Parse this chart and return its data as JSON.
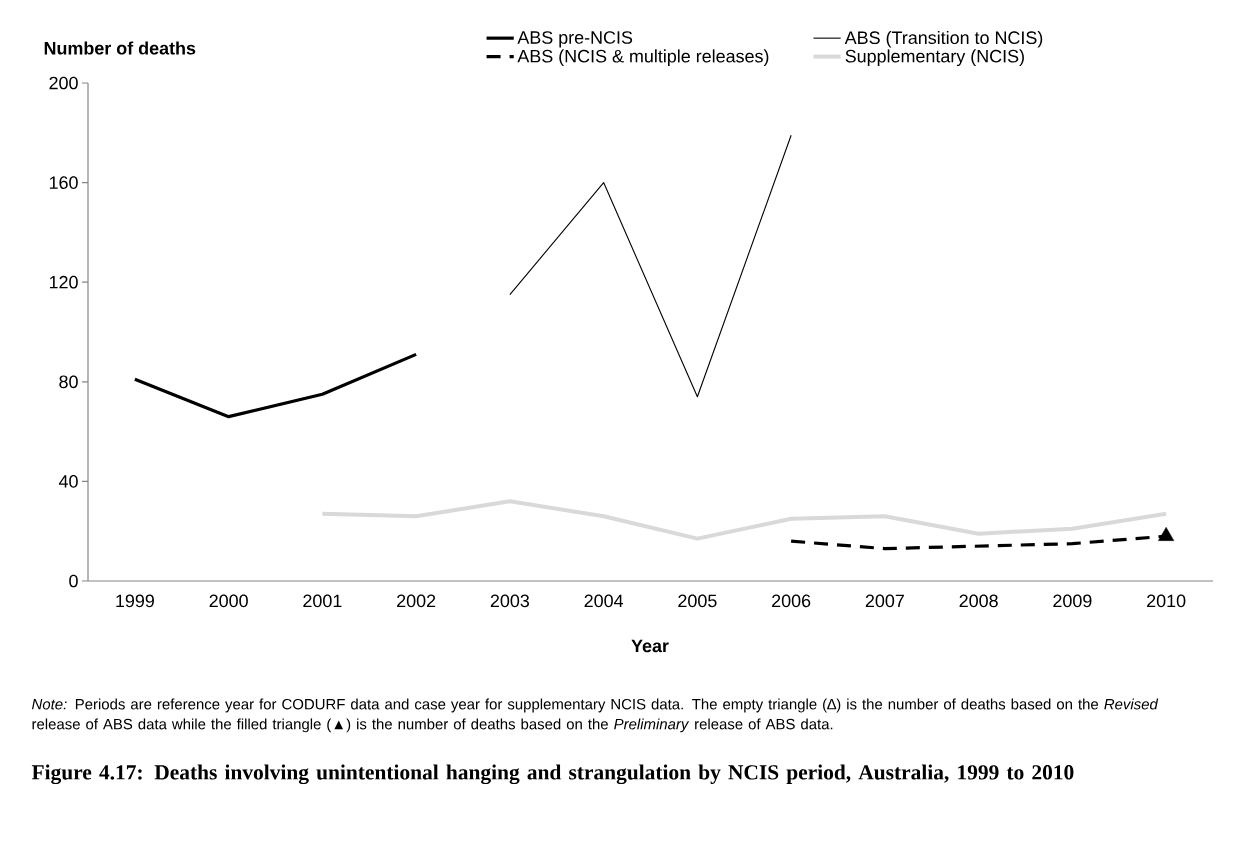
{
  "chart_data": {
    "type": "line",
    "title": "Figure 4.17: Deaths involving unintentional hanging and strangulation by NCIS period, Australia, 1999 to 2010",
    "xlabel": "Year",
    "ylabel": "Number of deaths",
    "categories": [
      "1999",
      "2000",
      "2001",
      "2002",
      "2003",
      "2004",
      "2005",
      "2006",
      "2007",
      "2008",
      "2009",
      "2010"
    ],
    "series": [
      {
        "name": "ABS pre-NCIS",
        "color": "#000000",
        "values": [
          81,
          66,
          75,
          91,
          null,
          null,
          null,
          null,
          null,
          null,
          null,
          null
        ]
      },
      {
        "name": "ABS (Transition to NCIS)",
        "color": "#000000",
        "values": [
          null,
          null,
          null,
          null,
          115,
          160,
          74,
          179,
          null,
          null,
          null,
          null
        ]
      },
      {
        "name": "ABS (NCIS & multiple releases)",
        "color": "#000000",
        "line_style": "dashed",
        "values": [
          null,
          null,
          null,
          null,
          null,
          null,
          null,
          16,
          13,
          14,
          15,
          18
        ]
      },
      {
        "name": "Supplementary (NCIS)",
        "color": "#d9d9d9",
        "values": [
          null,
          null,
          27,
          26,
          32,
          26,
          17,
          25,
          26,
          19,
          21,
          27
        ]
      },
      {
        "type": "scatter",
        "marker": "triangle",
        "color": "#000000",
        "values": [
          null,
          null,
          null,
          null,
          null,
          null,
          null,
          null,
          null,
          null,
          null,
          18
        ]
      }
    ],
    "ylim": [
      0,
      200
    ],
    "yticks": [
      0,
      40,
      80,
      120,
      160,
      200
    ],
    "legend": "top",
    "grid": false,
    "annotations": [
      "*Note:* Periods are reference year for CODURF data and case year for supplementary NCIS data. The empty triangle (∆) is the number of deaths based on the *Revised* release of ABS data while the filled triangle (▲) is the number of deaths based on the *Preliminary* release of ABS data."
    ]
  }
}
